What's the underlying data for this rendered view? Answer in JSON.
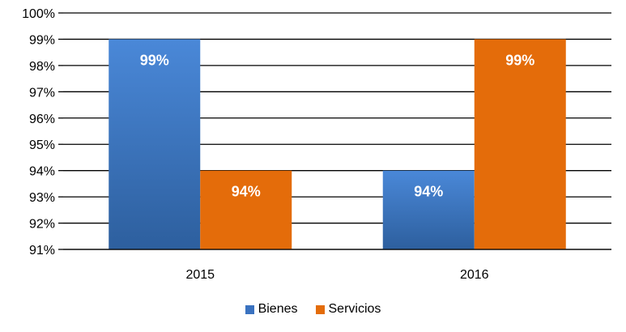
{
  "chart_data": {
    "type": "bar",
    "categories": [
      "2015",
      "2016"
    ],
    "series": [
      {
        "name": "Bienes",
        "values": [
          99,
          94
        ],
        "color": "#3a72c0",
        "data_labels": [
          "99%",
          "94%"
        ]
      },
      {
        "name": "Servicios",
        "values": [
          94,
          99
        ],
        "color": "#e46c0a",
        "data_labels": [
          "94%",
          "99%"
        ]
      }
    ],
    "ylim": [
      91,
      100
    ],
    "yticks": [
      91,
      92,
      93,
      94,
      95,
      96,
      97,
      98,
      99,
      100
    ],
    "ytick_labels": [
      "91%",
      "92%",
      "93%",
      "94%",
      "95%",
      "96%",
      "97%",
      "98%",
      "99%",
      "100%"
    ],
    "grid": true,
    "legend_position": "bottom"
  }
}
